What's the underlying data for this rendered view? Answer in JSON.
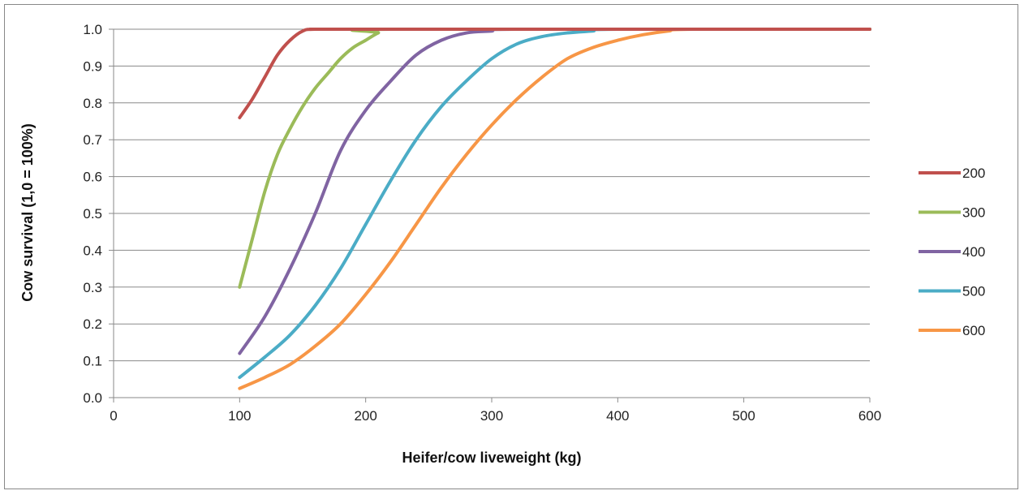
{
  "chart_data": {
    "type": "line",
    "title": "",
    "xlabel": "Heifer/cow liveweight (kg)",
    "ylabel": "Cow survival (1,0 = 100%)",
    "xlim": [
      0,
      600
    ],
    "ylim": [
      0,
      1
    ],
    "x_ticks": [
      "0",
      "100",
      "200",
      "300",
      "400",
      "500",
      "600"
    ],
    "y_ticks": [
      "0.0",
      "0.1",
      "0.2",
      "0.3",
      "0.4",
      "0.5",
      "0.6",
      "0.7",
      "0.8",
      "0.9",
      "1.0"
    ],
    "grid": "horizontal",
    "legend_position": "right",
    "series": [
      {
        "name": "200",
        "color": "#C0504D",
        "points": [
          [
            100,
            0.76
          ],
          [
            110,
            0.81
          ],
          [
            120,
            0.87
          ],
          [
            130,
            0.93
          ],
          [
            140,
            0.97
          ],
          [
            150,
            0.995
          ],
          [
            160,
            1.0
          ],
          [
            200,
            1.0
          ],
          [
            600,
            1.0
          ]
        ]
      },
      {
        "name": "300",
        "color": "#9BBB59",
        "points": [
          [
            100,
            0.3
          ],
          [
            110,
            0.43
          ],
          [
            120,
            0.56
          ],
          [
            130,
            0.66
          ],
          [
            140,
            0.73
          ],
          [
            150,
            0.79
          ],
          [
            160,
            0.84
          ],
          [
            170,
            0.88
          ],
          [
            180,
            0.92
          ],
          [
            190,
            0.95
          ],
          [
            200,
            0.97
          ],
          [
            210,
            0.99
          ],
          [
            220,
            1.0
          ],
          [
            600,
            1.0
          ]
        ]
      },
      {
        "name": "400",
        "color": "#8064A2",
        "points": [
          [
            100,
            0.12
          ],
          [
            120,
            0.22
          ],
          [
            140,
            0.35
          ],
          [
            160,
            0.5
          ],
          [
            180,
            0.67
          ],
          [
            200,
            0.78
          ],
          [
            220,
            0.86
          ],
          [
            240,
            0.93
          ],
          [
            260,
            0.97
          ],
          [
            280,
            0.99
          ],
          [
            300,
            0.995
          ],
          [
            320,
            1.0
          ],
          [
            600,
            1.0
          ]
        ]
      },
      {
        "name": "500",
        "color": "#4BACC6",
        "points": [
          [
            100,
            0.055
          ],
          [
            120,
            0.11
          ],
          [
            140,
            0.17
          ],
          [
            160,
            0.25
          ],
          [
            180,
            0.35
          ],
          [
            200,
            0.47
          ],
          [
            220,
            0.59
          ],
          [
            240,
            0.7
          ],
          [
            260,
            0.79
          ],
          [
            280,
            0.86
          ],
          [
            300,
            0.92
          ],
          [
            320,
            0.96
          ],
          [
            340,
            0.98
          ],
          [
            360,
            0.99
          ],
          [
            380,
            0.995
          ],
          [
            400,
            1.0
          ],
          [
            600,
            1.0
          ]
        ]
      },
      {
        "name": "600",
        "color": "#F79646",
        "points": [
          [
            100,
            0.025
          ],
          [
            120,
            0.055
          ],
          [
            140,
            0.09
          ],
          [
            160,
            0.14
          ],
          [
            180,
            0.2
          ],
          [
            200,
            0.28
          ],
          [
            220,
            0.37
          ],
          [
            240,
            0.47
          ],
          [
            260,
            0.57
          ],
          [
            280,
            0.66
          ],
          [
            300,
            0.74
          ],
          [
            320,
            0.81
          ],
          [
            340,
            0.87
          ],
          [
            360,
            0.92
          ],
          [
            380,
            0.95
          ],
          [
            400,
            0.97
          ],
          [
            420,
            0.985
          ],
          [
            440,
            0.995
          ],
          [
            460,
            1.0
          ],
          [
            600,
            1.0
          ]
        ]
      }
    ]
  }
}
